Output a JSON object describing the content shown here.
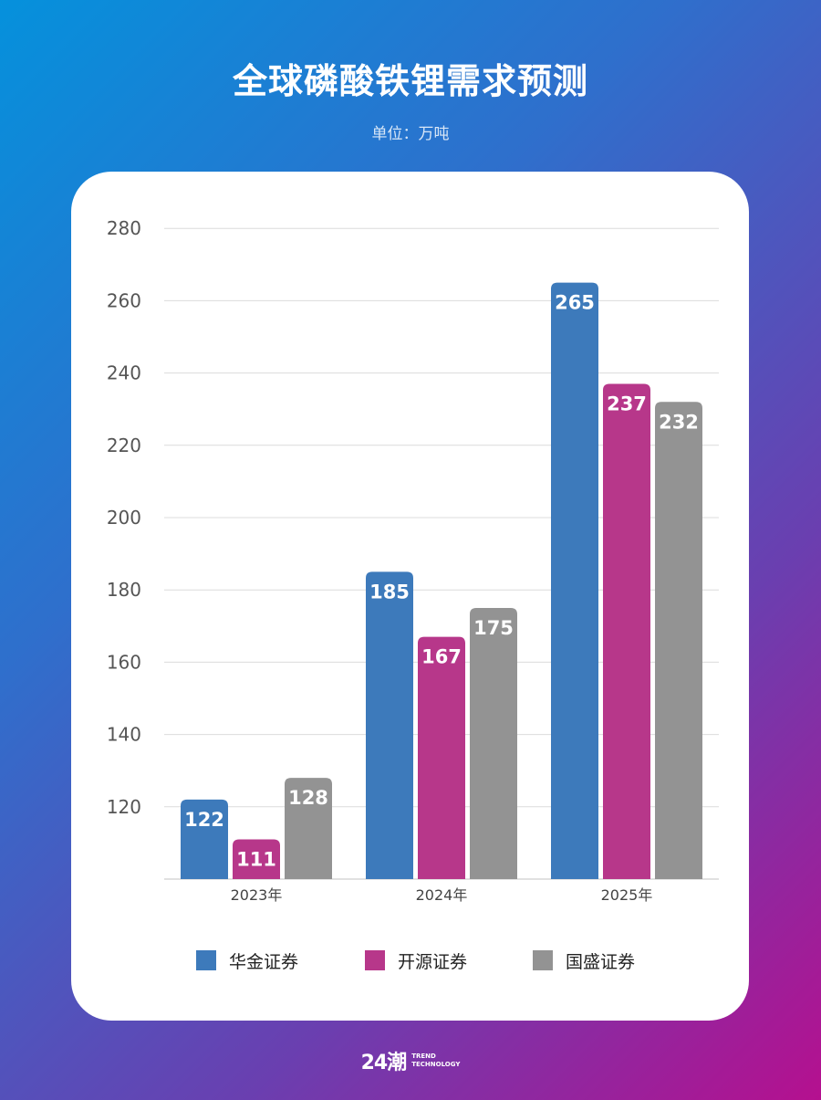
{
  "title": "全球磷酸铁锂需求预测",
  "unit": "单位：万吨",
  "logo": {
    "mark": "24潮",
    "line1": "TREND",
    "line2": "TECHNOLOGY"
  },
  "chart_data": {
    "type": "bar",
    "categories": [
      "2023年",
      "2024年",
      "2025年"
    ],
    "series": [
      {
        "name": "华金证券",
        "color": "#3d7abb",
        "values": [
          122,
          185,
          265
        ]
      },
      {
        "name": "开源证券",
        "color": "#b7378a",
        "values": [
          111,
          167,
          237
        ]
      },
      {
        "name": "国盛证券",
        "color": "#939393",
        "values": [
          128,
          175,
          232
        ]
      }
    ],
    "ylim": [
      100,
      280
    ],
    "yticks": [
      120,
      140,
      160,
      180,
      200,
      220,
      240,
      260,
      280
    ],
    "grid": true,
    "legend": "bottom"
  }
}
